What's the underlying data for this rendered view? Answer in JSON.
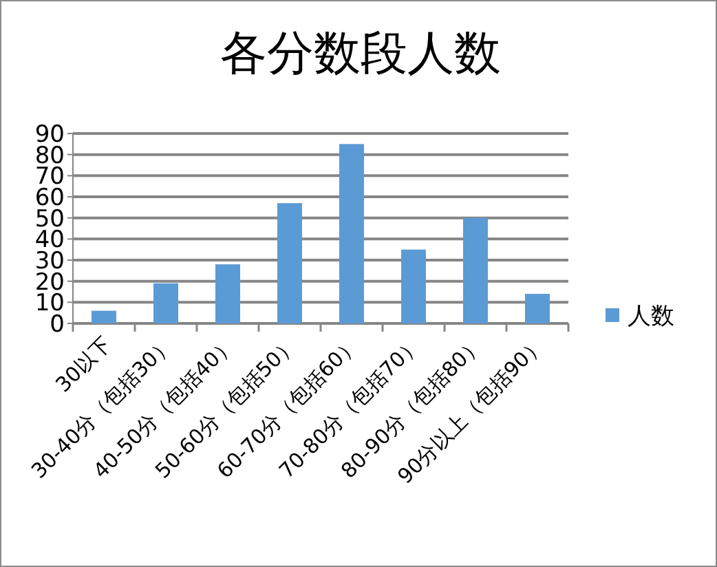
{
  "chart_data": {
    "type": "bar",
    "title": "各分数段人数",
    "categories": [
      "30以下",
      "30-40分（包括30）",
      "40-50分（包括40）",
      "50-60分（包括50）",
      "60-70分（包括60）",
      "70-80分（包括70）",
      "80-90分（包括80）",
      "90分以上（包括90）"
    ],
    "series": [
      {
        "name": "人数",
        "color": "#5b9bd5",
        "values": [
          6,
          19,
          28,
          57,
          85,
          35,
          50,
          14
        ]
      }
    ],
    "ylim": [
      0,
      90
    ],
    "yticks": [
      0,
      10,
      20,
      30,
      40,
      50,
      60,
      70,
      80,
      90
    ],
    "grid": "y",
    "legend": "right"
  }
}
